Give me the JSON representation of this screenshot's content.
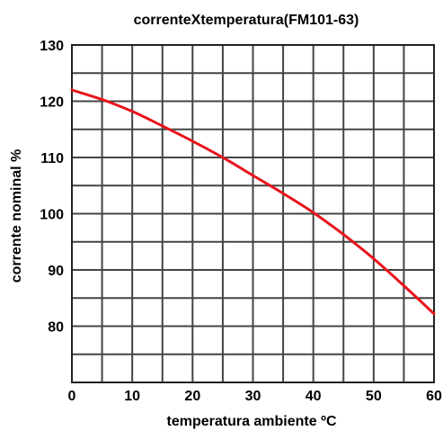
{
  "chart_data": {
    "type": "line",
    "title": "correnteXtemperatura(FM101-63)",
    "xlabel": "temperatura ambiente ºC",
    "ylabel": "corrente nominal %",
    "xlim": [
      0,
      60
    ],
    "ylim": [
      70,
      130
    ],
    "x_ticks": [
      "0",
      "10",
      "20",
      "30",
      "40",
      "50",
      "60"
    ],
    "y_ticks": [
      "80",
      "90",
      "100",
      "110",
      "120",
      "130"
    ],
    "grid": true,
    "series": [
      {
        "color": "#e8141c",
        "x": [
          0,
          5,
          10,
          15,
          20,
          25,
          30,
          35,
          40,
          45,
          50,
          55,
          60
        ],
        "y": [
          122,
          120.3,
          118.2,
          115.6,
          112.9,
          110.0,
          106.8,
          103.6,
          100.2,
          96.3,
          92.0,
          87.2,
          82.2
        ]
      }
    ]
  }
}
